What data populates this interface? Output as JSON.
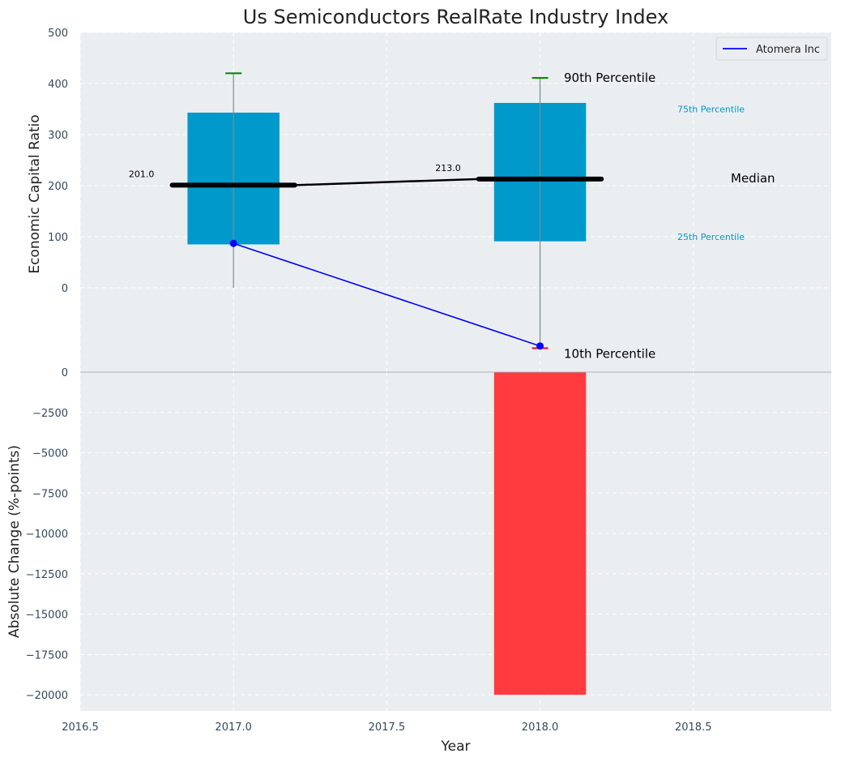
{
  "chart_data": [
    {
      "type": "bar",
      "title": "Us Semiconductors RealRate Industry Index",
      "ylabel": "Economic Capital Ratio",
      "x": [
        2017.0,
        2018.0
      ],
      "ylim": [
        -165,
        500
      ],
      "yticks": [
        0,
        100,
        200,
        300,
        400,
        500
      ],
      "boxes": [
        {
          "year": 2017.0,
          "p10": 0,
          "p25": 85,
          "median": 201.0,
          "p75": 343,
          "p90": 420,
          "median_label": "201.0"
        },
        {
          "year": 2018.0,
          "p10": -115,
          "p25": 91,
          "median": 213.0,
          "p75": 362,
          "p90": 411,
          "median_label": "213.0"
        }
      ],
      "series": [
        {
          "name": "Atomera Inc",
          "color": "#0000ff",
          "x": [
            2017.0,
            2018.0
          ],
          "values": [
            87,
            -114
          ]
        }
      ],
      "annotations": {
        "p90": "90th Percentile",
        "p75": "75th Percentile",
        "median": "Median",
        "p25": "25th Percentile",
        "p10": "10th Percentile"
      },
      "legend": {
        "placement": "top-right",
        "entries": [
          "Atomera Inc"
        ]
      },
      "colors": {
        "box": "#0099cc",
        "median": "#000000",
        "whisker": "#008000",
        "company": "#0000ff",
        "p10_marker": "#ff0000"
      },
      "grid": true
    },
    {
      "type": "bar",
      "xlabel": "Year",
      "ylabel": "Absolute Change (%-points)",
      "x": [
        2017.0,
        2018.0
      ],
      "values": [
        0,
        -20000
      ],
      "xlim": [
        2016.5,
        2018.95
      ],
      "ylim": [
        -21000,
        0
      ],
      "xticks": [
        2016.5,
        2017.0,
        2017.5,
        2018.0,
        2018.5
      ],
      "xtick_labels": [
        "2016.5",
        "2017.0",
        "2017.5",
        "2018.0",
        "2018.5"
      ],
      "yticks": [
        0,
        -2500,
        -5000,
        -7500,
        -10000,
        -12500,
        -15000,
        -17500,
        -20000
      ],
      "ytick_labels": [
        "0",
        "−2500",
        "−5000",
        "−7500",
        "−10000",
        "−12500",
        "−15000",
        "−17500",
        "−20000"
      ],
      "colors": {
        "bar": "#ff3b3f"
      },
      "grid": true
    }
  ]
}
